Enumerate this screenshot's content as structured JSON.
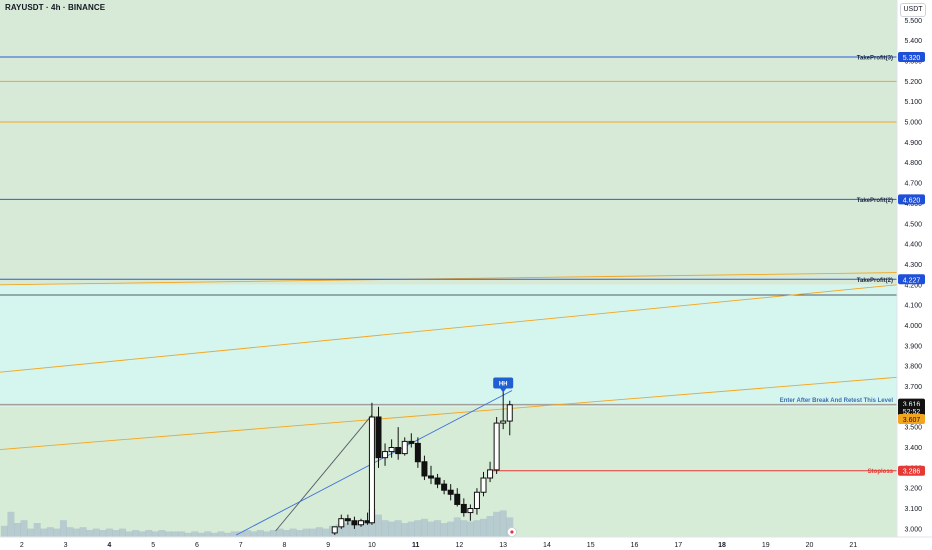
{
  "header": {
    "title": "RAYUSDT · 4h · BINANCE",
    "unit": "USDT"
  },
  "colors": {
    "upper_zone": "#d6ead7",
    "middle_zone": "#d5f5ef",
    "lower_zone": "#d6ecd6",
    "takeprofit_line": "#2f5bd6",
    "takeprofit_badge": "#1d4fd8",
    "orange_line": "#f3a51f",
    "stoploss": "#e53935",
    "entry_text": "#3b6fb0",
    "hh_badge": "#1f5fd1",
    "candle": "#111111",
    "volume": "#9fb3c8"
  },
  "chart_data": {
    "type": "candlestick",
    "title": "RAYUSDT · 4h · BINANCE",
    "ylabel": "USDT",
    "ylim": [
      2.96,
      5.6
    ],
    "y_ticks": [
      3.0,
      3.1,
      3.2,
      3.3,
      3.4,
      3.5,
      3.6,
      3.7,
      3.8,
      3.9,
      4.0,
      4.1,
      4.2,
      4.3,
      4.4,
      4.5,
      4.6,
      4.7,
      4.8,
      4.9,
      5.0,
      5.1,
      5.2,
      5.3,
      5.4,
      5.5
    ],
    "y_tick_labels": [
      "3.000",
      "3.100",
      "3.200",
      "3.300",
      "3.400",
      "3.500",
      "3.600",
      "3.700",
      "3.800",
      "3.900",
      "4.000",
      "4.100",
      "4.200",
      "4.300",
      "4.400",
      "4.500",
      "4.600",
      "4.700",
      "4.800",
      "4.900",
      "5.000",
      "5.100",
      "5.200",
      "5.300",
      "5.400",
      "5.500"
    ],
    "x_range": [
      1.5,
      22
    ],
    "x_ticks": [
      2,
      3,
      4,
      5,
      6,
      7,
      8,
      9,
      10,
      11,
      12,
      13,
      14,
      15,
      16,
      17,
      18,
      19,
      20,
      21
    ],
    "x_tick_labels": [
      "2",
      "3",
      "4",
      "5",
      "6",
      "7",
      "8",
      "9",
      "10",
      "11",
      "12",
      "13",
      "14",
      "15",
      "16",
      "17",
      "18",
      "19",
      "20",
      "21"
    ],
    "x_bold_ticks": [
      "4",
      "11",
      "18"
    ],
    "zones": [
      {
        "from": 4.2,
        "to": 5.6,
        "color": "upper_zone"
      },
      {
        "from": 3.6,
        "to": 4.2,
        "color": "middle_zone"
      },
      {
        "from": 2.96,
        "to": 3.6,
        "color": "lower_zone"
      }
    ],
    "levels": [
      {
        "price": 5.32,
        "label": "TakeProfit(3)",
        "badge": "5.320",
        "kind": "takeprofit"
      },
      {
        "price": 4.62,
        "label": "TakeProfit(2)",
        "badge": "4.620",
        "kind": "takeprofit"
      },
      {
        "price": 4.227,
        "label": "TakeProfit(2)",
        "badge": "4.227",
        "kind": "takeprofit"
      },
      {
        "price": 3.286,
        "label": "Stoploss",
        "badge": "3.286",
        "kind": "stoploss"
      },
      {
        "price": 3.609,
        "label": "Enter After Break And Retest This Level",
        "badge": "",
        "kind": "entry"
      }
    ],
    "horizontal_lines": [
      {
        "price": 5.2,
        "color": "orange_line"
      },
      {
        "price": 5.0,
        "color": "orange_line"
      },
      {
        "price": 4.15,
        "color": "#555a66"
      },
      {
        "price": 3.609,
        "color": "orange_line"
      },
      {
        "price": 3.612,
        "color": "#9aa0aa"
      }
    ],
    "trend_lines": [
      {
        "x1": 1.5,
        "y1": 4.2,
        "x2": 22,
        "y2": 4.26,
        "color": "orange_line"
      },
      {
        "x1": 1.5,
        "y1": 3.77,
        "x2": 22,
        "y2": 4.2,
        "color": "orange_line"
      },
      {
        "x1": 1.5,
        "y1": 3.39,
        "x2": 22,
        "y2": 3.745,
        "color": "orange_line"
      },
      {
        "x1": 6.9,
        "y1": 2.97,
        "x2": 13.2,
        "y2": 3.68,
        "color": "#3f72d9"
      },
      {
        "x1": 7.8,
        "y1": 2.99,
        "x2": 10.0,
        "y2": 3.56,
        "color": "#555a66"
      }
    ],
    "candles": [
      {
        "x": 9.15,
        "o": 2.98,
        "h": 3.01,
        "l": 2.97,
        "c": 3.01
      },
      {
        "x": 9.3,
        "o": 3.01,
        "h": 3.07,
        "l": 3.0,
        "c": 3.05
      },
      {
        "x": 9.45,
        "o": 3.05,
        "h": 3.07,
        "l": 3.02,
        "c": 3.04
      },
      {
        "x": 9.6,
        "o": 3.04,
        "h": 3.06,
        "l": 3.0,
        "c": 3.02
      },
      {
        "x": 9.75,
        "o": 3.02,
        "h": 3.05,
        "l": 3.01,
        "c": 3.04
      },
      {
        "x": 9.9,
        "o": 3.04,
        "h": 3.08,
        "l": 3.02,
        "c": 3.03
      },
      {
        "x": 10.0,
        "o": 3.03,
        "h": 3.62,
        "l": 3.02,
        "c": 3.55
      },
      {
        "x": 10.15,
        "o": 3.55,
        "h": 3.6,
        "l": 3.3,
        "c": 3.35
      },
      {
        "x": 10.3,
        "o": 3.35,
        "h": 3.42,
        "l": 3.31,
        "c": 3.38
      },
      {
        "x": 10.45,
        "o": 3.38,
        "h": 3.44,
        "l": 3.35,
        "c": 3.4
      },
      {
        "x": 10.6,
        "o": 3.4,
        "h": 3.5,
        "l": 3.34,
        "c": 3.37
      },
      {
        "x": 10.75,
        "o": 3.37,
        "h": 3.45,
        "l": 3.36,
        "c": 3.43
      },
      {
        "x": 10.9,
        "o": 3.43,
        "h": 3.47,
        "l": 3.4,
        "c": 3.42
      },
      {
        "x": 11.05,
        "o": 3.42,
        "h": 3.45,
        "l": 3.3,
        "c": 3.33
      },
      {
        "x": 11.2,
        "o": 3.33,
        "h": 3.36,
        "l": 3.24,
        "c": 3.26
      },
      {
        "x": 11.35,
        "o": 3.26,
        "h": 3.31,
        "l": 3.22,
        "c": 3.25
      },
      {
        "x": 11.5,
        "o": 3.25,
        "h": 3.27,
        "l": 3.2,
        "c": 3.22
      },
      {
        "x": 11.65,
        "o": 3.22,
        "h": 3.24,
        "l": 3.17,
        "c": 3.19
      },
      {
        "x": 11.8,
        "o": 3.19,
        "h": 3.22,
        "l": 3.14,
        "c": 3.17
      },
      {
        "x": 11.95,
        "o": 3.17,
        "h": 3.2,
        "l": 3.11,
        "c": 3.12
      },
      {
        "x": 12.1,
        "o": 3.12,
        "h": 3.15,
        "l": 3.06,
        "c": 3.08
      },
      {
        "x": 12.25,
        "o": 3.08,
        "h": 3.12,
        "l": 3.04,
        "c": 3.1
      },
      {
        "x": 12.4,
        "o": 3.1,
        "h": 3.2,
        "l": 3.07,
        "c": 3.18
      },
      {
        "x": 12.55,
        "o": 3.18,
        "h": 3.28,
        "l": 3.16,
        "c": 3.25
      },
      {
        "x": 12.7,
        "o": 3.25,
        "h": 3.33,
        "l": 3.23,
        "c": 3.29
      },
      {
        "x": 12.85,
        "o": 3.29,
        "h": 3.55,
        "l": 3.27,
        "c": 3.52
      },
      {
        "x": 13.0,
        "o": 3.52,
        "h": 3.68,
        "l": 3.49,
        "c": 3.53
      },
      {
        "x": 13.15,
        "o": 3.53,
        "h": 3.63,
        "l": 3.46,
        "c": 3.61
      }
    ],
    "volume": [
      {
        "x": 1.6,
        "v": 0.4
      },
      {
        "x": 1.75,
        "v": 0.9
      },
      {
        "x": 1.9,
        "v": 0.5
      },
      {
        "x": 2.05,
        "v": 0.6
      },
      {
        "x": 2.2,
        "v": 0.3
      },
      {
        "x": 2.35,
        "v": 0.5
      },
      {
        "x": 2.5,
        "v": 0.3
      },
      {
        "x": 2.65,
        "v": 0.35
      },
      {
        "x": 2.8,
        "v": 0.3
      },
      {
        "x": 2.95,
        "v": 0.6
      },
      {
        "x": 3.1,
        "v": 0.35
      },
      {
        "x": 3.25,
        "v": 0.3
      },
      {
        "x": 3.4,
        "v": 0.35
      },
      {
        "x": 3.55,
        "v": 0.25
      },
      {
        "x": 3.7,
        "v": 0.3
      },
      {
        "x": 3.85,
        "v": 0.25
      },
      {
        "x": 4.0,
        "v": 0.3
      },
      {
        "x": 4.15,
        "v": 0.25
      },
      {
        "x": 4.3,
        "v": 0.3
      },
      {
        "x": 4.45,
        "v": 0.2
      },
      {
        "x": 4.6,
        "v": 0.25
      },
      {
        "x": 4.75,
        "v": 0.2
      },
      {
        "x": 4.9,
        "v": 0.25
      },
      {
        "x": 5.05,
        "v": 0.2
      },
      {
        "x": 5.2,
        "v": 0.25
      },
      {
        "x": 5.35,
        "v": 0.2
      },
      {
        "x": 5.5,
        "v": 0.2
      },
      {
        "x": 5.65,
        "v": 0.2
      },
      {
        "x": 5.8,
        "v": 0.15
      },
      {
        "x": 5.95,
        "v": 0.2
      },
      {
        "x": 6.1,
        "v": 0.15
      },
      {
        "x": 6.25,
        "v": 0.2
      },
      {
        "x": 6.4,
        "v": 0.15
      },
      {
        "x": 6.55,
        "v": 0.2
      },
      {
        "x": 6.7,
        "v": 0.15
      },
      {
        "x": 6.85,
        "v": 0.2
      },
      {
        "x": 7.0,
        "v": 0.2
      },
      {
        "x": 7.15,
        "v": 0.25
      },
      {
        "x": 7.3,
        "v": 0.2
      },
      {
        "x": 7.45,
        "v": 0.25
      },
      {
        "x": 7.6,
        "v": 0.2
      },
      {
        "x": 7.75,
        "v": 0.25
      },
      {
        "x": 7.9,
        "v": 0.3
      },
      {
        "x": 8.05,
        "v": 0.25
      },
      {
        "x": 8.2,
        "v": 0.3
      },
      {
        "x": 8.35,
        "v": 0.25
      },
      {
        "x": 8.5,
        "v": 0.3
      },
      {
        "x": 8.65,
        "v": 0.3
      },
      {
        "x": 8.8,
        "v": 0.35
      },
      {
        "x": 8.95,
        "v": 0.3
      },
      {
        "x": 9.1,
        "v": 0.4
      },
      {
        "x": 9.25,
        "v": 0.45
      },
      {
        "x": 9.4,
        "v": 0.5
      },
      {
        "x": 9.55,
        "v": 0.55
      },
      {
        "x": 9.7,
        "v": 0.5
      },
      {
        "x": 9.85,
        "v": 0.6
      },
      {
        "x": 10.0,
        "v": 1.0
      },
      {
        "x": 10.15,
        "v": 0.8
      },
      {
        "x": 10.3,
        "v": 0.6
      },
      {
        "x": 10.45,
        "v": 0.55
      },
      {
        "x": 10.6,
        "v": 0.6
      },
      {
        "x": 10.75,
        "v": 0.5
      },
      {
        "x": 10.9,
        "v": 0.55
      },
      {
        "x": 11.05,
        "v": 0.6
      },
      {
        "x": 11.2,
        "v": 0.65
      },
      {
        "x": 11.35,
        "v": 0.55
      },
      {
        "x": 11.5,
        "v": 0.6
      },
      {
        "x": 11.65,
        "v": 0.5
      },
      {
        "x": 11.8,
        "v": 0.55
      },
      {
        "x": 11.95,
        "v": 0.7
      },
      {
        "x": 12.1,
        "v": 0.6
      },
      {
        "x": 12.25,
        "v": 0.55
      },
      {
        "x": 12.4,
        "v": 0.6
      },
      {
        "x": 12.55,
        "v": 0.65
      },
      {
        "x": 12.7,
        "v": 0.75
      },
      {
        "x": 12.85,
        "v": 0.9
      },
      {
        "x": 13.0,
        "v": 0.95
      },
      {
        "x": 13.15,
        "v": 0.7
      }
    ],
    "price_badges": [
      {
        "price": 3.616,
        "text": "3.616",
        "bg": "#111111",
        "fg": "#ffffff"
      },
      {
        "price": 3.58,
        "text": "52:52",
        "bg": "#111111",
        "fg": "#ffffff"
      },
      {
        "price": 3.54,
        "text": "3.607",
        "bg": "#f3a51f",
        "fg": "#111111"
      }
    ],
    "hh_label": {
      "x": 13.0,
      "price": 3.7,
      "text": "HH"
    },
    "eye_marker_x": 13.2
  }
}
